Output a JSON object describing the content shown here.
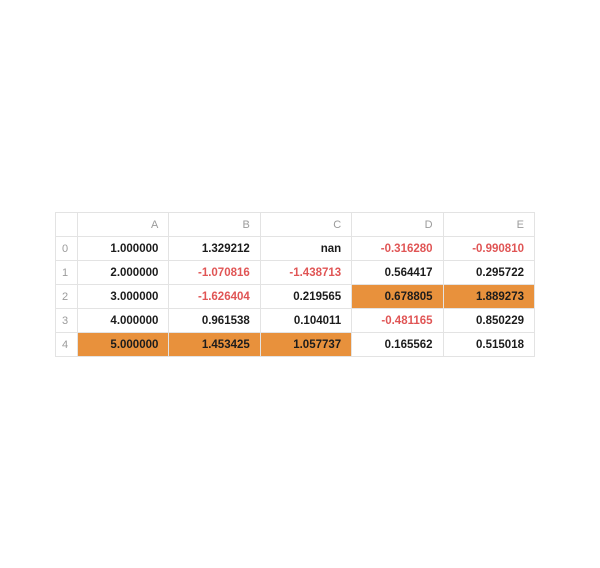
{
  "chart_data": {
    "type": "table",
    "columns": [
      "A",
      "B",
      "C",
      "D",
      "E"
    ],
    "index": [
      "0",
      "1",
      "2",
      "3",
      "4"
    ],
    "rows": [
      {
        "index": "0",
        "cells": [
          {
            "value": "1.000000"
          },
          {
            "value": "1.329212"
          },
          {
            "value": "nan"
          },
          {
            "value": "-0.316280",
            "negative": true
          },
          {
            "value": "-0.990810",
            "negative": true
          }
        ]
      },
      {
        "index": "1",
        "cells": [
          {
            "value": "2.000000"
          },
          {
            "value": "-1.070816",
            "negative": true
          },
          {
            "value": "-1.438713",
            "negative": true
          },
          {
            "value": "0.564417"
          },
          {
            "value": "0.295722"
          }
        ]
      },
      {
        "index": "2",
        "cells": [
          {
            "value": "3.000000"
          },
          {
            "value": "-1.626404",
            "negative": true
          },
          {
            "value": "0.219565"
          },
          {
            "value": "0.678805",
            "highlight": true
          },
          {
            "value": "1.889273",
            "highlight": true
          }
        ]
      },
      {
        "index": "3",
        "cells": [
          {
            "value": "4.000000"
          },
          {
            "value": "0.961538"
          },
          {
            "value": "0.104011"
          },
          {
            "value": "-0.481165",
            "negative": true
          },
          {
            "value": "0.850229"
          }
        ]
      },
      {
        "index": "4",
        "cells": [
          {
            "value": "5.000000",
            "highlight": true
          },
          {
            "value": "1.453425",
            "highlight": true
          },
          {
            "value": "1.057737",
            "highlight": true
          },
          {
            "value": "0.165562"
          },
          {
            "value": "0.515018"
          }
        ]
      }
    ],
    "styles": {
      "highlight_color": "#e8913c",
      "negative_color": "#e05555",
      "border_color": "#e3e3e3",
      "header_text_color": "#9b9b9b",
      "body_text_color": "#1c1c1c"
    }
  }
}
